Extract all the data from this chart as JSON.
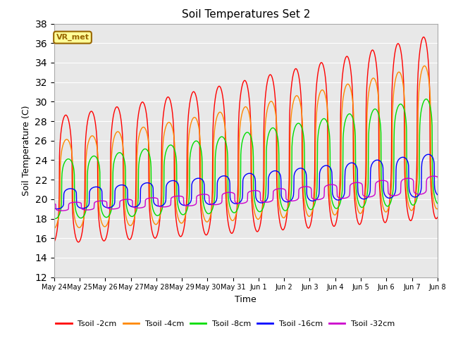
{
  "title": "Soil Temperatures Set 2",
  "xlabel": "Time",
  "ylabel": "Soil Temperature (C)",
  "ylim": [
    12,
    38
  ],
  "yticks": [
    12,
    14,
    16,
    18,
    20,
    22,
    24,
    26,
    28,
    30,
    32,
    34,
    36,
    38
  ],
  "fig_bg": "#ffffff",
  "plot_bg": "#e8e8e8",
  "grid_color": "#ffffff",
  "legend_entries": [
    "Tsoil -2cm",
    "Tsoil -4cm",
    "Tsoil -8cm",
    "Tsoil -16cm",
    "Tsoil -32cm"
  ],
  "colors": [
    "#ff0000",
    "#ff8800",
    "#00dd00",
    "#0000ff",
    "#cc00cc"
  ],
  "annotation_text": "VR_met",
  "annotation_bg": "#ffff99",
  "annotation_border": "#996600",
  "day_labels": [
    "May 24",
    "May 25",
    "May 26",
    "May 27",
    "May 28",
    "May 29",
    "May 30",
    "May 31",
    "Jun 1",
    "Jun 2",
    "Jun 3",
    "Jun 4",
    "Jun 5",
    "Jun 6",
    "Jun 7",
    "Jun 8"
  ]
}
